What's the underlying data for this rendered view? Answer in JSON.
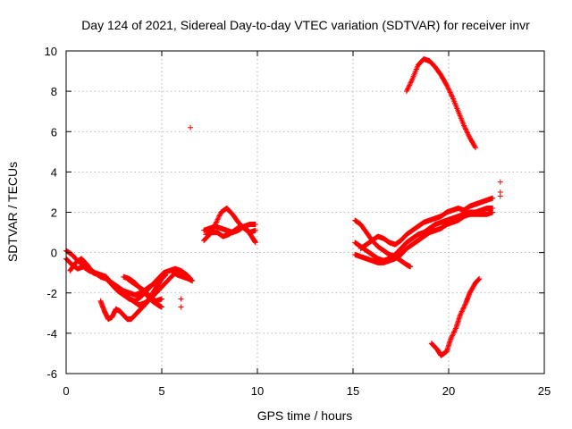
{
  "chart_data": {
    "type": "scatter",
    "title": "Day 124 of 2021, Sidereal Day-to-day VTEC variation (SDTVAR) for receiver invr",
    "xlabel": "GPS time / hours",
    "ylabel": "SDTVAR / TECUs",
    "xlim": [
      0,
      25
    ],
    "ylim": [
      -6,
      10
    ],
    "xticks": [
      0,
      5,
      10,
      15,
      20,
      25
    ],
    "yticks": [
      -6,
      -4,
      -2,
      0,
      2,
      4,
      6,
      8,
      10
    ],
    "xtick_labels": [
      "0",
      "5",
      "10",
      "15",
      "20",
      "25"
    ],
    "ytick_labels": [
      "-6",
      "-4",
      "-2",
      "0",
      "2",
      "4",
      "6",
      "8",
      "10"
    ],
    "grid": true,
    "marker": "+",
    "series": [
      {
        "name": "SDTVAR",
        "color": "#ff0000",
        "tracks": [
          [
            [
              0.0,
              -0.3
            ],
            [
              0.3,
              -0.6
            ],
            [
              0.6,
              -0.8
            ],
            [
              0.9,
              -0.7
            ],
            [
              1.2,
              -0.9
            ],
            [
              1.5,
              -1.0
            ],
            [
              1.8,
              -1.1
            ],
            [
              2.1,
              -1.2
            ],
            [
              2.4,
              -1.6
            ],
            [
              2.7,
              -1.9
            ],
            [
              3.0,
              -2.1
            ],
            [
              3.3,
              -2.3
            ],
            [
              3.6,
              -2.4
            ],
            [
              3.9,
              -2.2
            ],
            [
              4.2,
              -1.9
            ],
            [
              4.5,
              -1.6
            ],
            [
              4.8,
              -1.3
            ],
            [
              5.1,
              -1.0
            ],
            [
              5.4,
              -0.9
            ],
            [
              5.7,
              -0.8
            ],
            [
              6.0,
              -0.9
            ],
            [
              6.3,
              -1.1
            ],
            [
              6.5,
              -1.3
            ]
          ],
          [
            [
              0.0,
              0.1
            ],
            [
              0.3,
              -0.1
            ],
            [
              0.6,
              -0.4
            ],
            [
              0.9,
              -0.6
            ],
            [
              1.2,
              -0.8
            ],
            [
              1.5,
              -1.0
            ],
            [
              1.8,
              -1.2
            ],
            [
              2.1,
              -1.3
            ],
            [
              2.4,
              -1.5
            ],
            [
              2.7,
              -1.7
            ],
            [
              3.0,
              -1.9
            ],
            [
              3.3,
              -2.0
            ],
            [
              3.6,
              -2.1
            ],
            [
              3.9,
              -2.0
            ],
            [
              4.2,
              -1.8
            ],
            [
              4.5,
              -1.6
            ],
            [
              4.8,
              -1.4
            ],
            [
              5.0,
              -1.2
            ]
          ],
          [
            [
              0.2,
              -0.9
            ],
            [
              0.5,
              -0.5
            ],
            [
              0.8,
              -0.3
            ],
            [
              1.1,
              -0.6
            ],
            [
              1.4,
              -1.0
            ],
            [
              1.7,
              -1.1
            ],
            [
              2.0,
              -1.2
            ],
            [
              2.3,
              -1.5
            ],
            [
              2.6,
              -1.8
            ],
            [
              2.9,
              -2.0
            ],
            [
              3.2,
              -2.2
            ],
            [
              3.5,
              -2.4
            ],
            [
              3.8,
              -2.6
            ],
            [
              4.1,
              -2.5
            ],
            [
              4.4,
              -2.3
            ],
            [
              4.7,
              -2.0
            ],
            [
              5.0,
              -1.7
            ],
            [
              5.3,
              -1.4
            ],
            [
              5.6,
              -1.1
            ],
            [
              5.9,
              -0.9
            ]
          ],
          [
            [
              1.8,
              -2.4
            ],
            [
              2.0,
              -2.9
            ],
            [
              2.2,
              -3.3
            ],
            [
              2.4,
              -3.2
            ],
            [
              2.6,
              -2.8
            ],
            [
              2.8,
              -2.9
            ],
            [
              3.0,
              -3.1
            ],
            [
              3.2,
              -3.3
            ],
            [
              3.4,
              -3.3
            ],
            [
              3.6,
              -3.1
            ],
            [
              3.8,
              -2.9
            ],
            [
              4.0,
              -2.7
            ],
            [
              4.2,
              -2.5
            ],
            [
              4.4,
              -2.2
            ],
            [
              4.6,
              -1.9
            ],
            [
              4.8,
              -1.6
            ],
            [
              5.0,
              -1.3
            ],
            [
              5.2,
              -1.1
            ]
          ],
          [
            [
              3.0,
              -1.2
            ],
            [
              3.3,
              -1.3
            ],
            [
              3.6,
              -1.5
            ],
            [
              3.9,
              -1.8
            ],
            [
              4.2,
              -2.1
            ],
            [
              4.5,
              -2.4
            ],
            [
              4.8,
              -2.6
            ],
            [
              5.0,
              -2.7
            ]
          ],
          [
            [
              3.2,
              -1.3
            ],
            [
              3.5,
              -1.5
            ],
            [
              3.8,
              -1.7
            ],
            [
              4.1,
              -1.9
            ],
            [
              4.4,
              -2.2
            ],
            [
              4.7,
              -2.4
            ],
            [
              5.0,
              -2.3
            ]
          ],
          [
            [
              5.5,
              -0.9
            ],
            [
              5.8,
              -1.1
            ],
            [
              6.1,
              -1.2
            ],
            [
              6.4,
              -1.3
            ],
            [
              6.6,
              -1.4
            ]
          ],
          [
            [
              7.2,
              0.6
            ],
            [
              7.5,
              0.9
            ],
            [
              7.8,
              1.4
            ],
            [
              8.1,
              2.0
            ],
            [
              8.4,
              2.2
            ],
            [
              8.7,
              1.9
            ],
            [
              9.0,
              1.5
            ],
            [
              9.3,
              1.2
            ],
            [
              9.6,
              1.0
            ],
            [
              9.9,
              1.1
            ]
          ],
          [
            [
              7.2,
              1.1
            ],
            [
              7.5,
              1.2
            ],
            [
              7.8,
              1.3
            ],
            [
              8.1,
              1.2
            ],
            [
              8.4,
              1.1
            ],
            [
              8.7,
              1.0
            ],
            [
              9.0,
              1.1
            ],
            [
              9.3,
              1.3
            ],
            [
              9.6,
              1.4
            ],
            [
              9.9,
              1.4
            ]
          ],
          [
            [
              7.3,
              0.9
            ],
            [
              7.6,
              1.0
            ],
            [
              7.9,
              1.0
            ],
            [
              8.2,
              0.8
            ],
            [
              8.5,
              0.9
            ],
            [
              8.8,
              1.1
            ],
            [
              9.1,
              1.3
            ],
            [
              9.4,
              1.2
            ],
            [
              9.7,
              0.8
            ],
            [
              9.9,
              0.5
            ]
          ],
          [
            [
              15.1,
              1.6
            ],
            [
              15.4,
              1.4
            ],
            [
              15.7,
              1.0
            ],
            [
              16.0,
              0.6
            ],
            [
              16.3,
              0.3
            ],
            [
              16.6,
              0.1
            ],
            [
              16.9,
              -0.1
            ],
            [
              17.2,
              -0.2
            ],
            [
              17.5,
              -0.4
            ],
            [
              17.8,
              -0.6
            ],
            [
              18.0,
              -0.7
            ]
          ],
          [
            [
              15.1,
              0.5
            ],
            [
              15.4,
              0.3
            ],
            [
              15.7,
              0.1
            ],
            [
              16.0,
              -0.1
            ],
            [
              16.3,
              -0.3
            ],
            [
              16.6,
              -0.4
            ],
            [
              16.9,
              -0.3
            ],
            [
              17.2,
              -0.1
            ],
            [
              17.5,
              0.2
            ],
            [
              17.8,
              0.5
            ],
            [
              18.1,
              0.7
            ],
            [
              18.4,
              0.9
            ],
            [
              18.7,
              1.0
            ],
            [
              19.0,
              1.2
            ],
            [
              19.3,
              1.4
            ],
            [
              19.6,
              1.5
            ],
            [
              19.9,
              1.6
            ],
            [
              20.2,
              1.7
            ],
            [
              20.5,
              1.8
            ],
            [
              20.8,
              1.9
            ],
            [
              21.1,
              2.0
            ],
            [
              21.4,
              2.0
            ],
            [
              21.7,
              2.1
            ],
            [
              22.0,
              2.2
            ],
            [
              22.3,
              2.2
            ]
          ],
          [
            [
              15.1,
              -0.1
            ],
            [
              15.4,
              -0.2
            ],
            [
              15.7,
              -0.3
            ],
            [
              16.0,
              -0.4
            ],
            [
              16.3,
              -0.5
            ],
            [
              16.6,
              -0.5
            ],
            [
              16.9,
              -0.4
            ],
            [
              17.2,
              -0.3
            ],
            [
              17.5,
              -0.1
            ],
            [
              17.8,
              0.2
            ],
            [
              18.1,
              0.4
            ],
            [
              18.4,
              0.6
            ],
            [
              18.7,
              0.8
            ],
            [
              19.0,
              1.0
            ],
            [
              19.3,
              1.1
            ],
            [
              19.6,
              1.2
            ],
            [
              19.9,
              1.4
            ],
            [
              20.2,
              1.5
            ],
            [
              20.5,
              1.6
            ],
            [
              20.8,
              1.8
            ],
            [
              21.1,
              1.9
            ],
            [
              21.4,
              1.9
            ],
            [
              21.7,
              1.9
            ],
            [
              22.0,
              1.9
            ],
            [
              22.3,
              2.0
            ]
          ],
          [
            [
              15.4,
              0.2
            ],
            [
              15.7,
              0.4
            ],
            [
              16.0,
              0.6
            ],
            [
              16.3,
              0.8
            ],
            [
              16.6,
              0.7
            ],
            [
              16.9,
              0.5
            ],
            [
              17.2,
              0.4
            ],
            [
              17.5,
              0.6
            ],
            [
              17.8,
              0.9
            ],
            [
              18.1,
              1.1
            ],
            [
              18.4,
              1.3
            ],
            [
              18.7,
              1.5
            ],
            [
              19.0,
              1.6
            ],
            [
              19.3,
              1.7
            ],
            [
              19.6,
              1.8
            ],
            [
              19.9,
              2.0
            ],
            [
              20.2,
              2.1
            ],
            [
              20.5,
              2.2
            ],
            [
              20.8,
              2.1
            ],
            [
              21.1,
              2.3
            ],
            [
              21.4,
              2.4
            ],
            [
              21.7,
              2.5
            ],
            [
              22.0,
              2.6
            ],
            [
              22.3,
              2.7
            ]
          ],
          [
            [
              17.8,
              8.0
            ],
            [
              18.1,
              8.6
            ],
            [
              18.4,
              9.3
            ],
            [
              18.7,
              9.6
            ],
            [
              19.0,
              9.5
            ],
            [
              19.3,
              9.2
            ],
            [
              19.6,
              8.8
            ],
            [
              19.9,
              8.3
            ],
            [
              20.2,
              7.7
            ],
            [
              20.5,
              7.0
            ],
            [
              20.8,
              6.3
            ],
            [
              21.1,
              5.7
            ],
            [
              21.4,
              5.2
            ]
          ],
          [
            [
              19.1,
              -4.5
            ],
            [
              19.4,
              -4.8
            ],
            [
              19.6,
              -5.1
            ],
            [
              19.9,
              -4.9
            ],
            [
              20.1,
              -4.3
            ],
            [
              20.4,
              -3.7
            ],
            [
              20.6,
              -3.1
            ],
            [
              20.9,
              -2.5
            ],
            [
              21.1,
              -2.0
            ],
            [
              21.4,
              -1.5
            ],
            [
              21.6,
              -1.3
            ]
          ]
        ],
        "isolated_points": [
          [
            6.5,
            6.2
          ],
          [
            6.0,
            -2.3
          ],
          [
            6.0,
            -2.7
          ],
          [
            22.7,
            3.5
          ],
          [
            22.7,
            3.0
          ],
          [
            22.7,
            2.8
          ]
        ]
      }
    ]
  }
}
